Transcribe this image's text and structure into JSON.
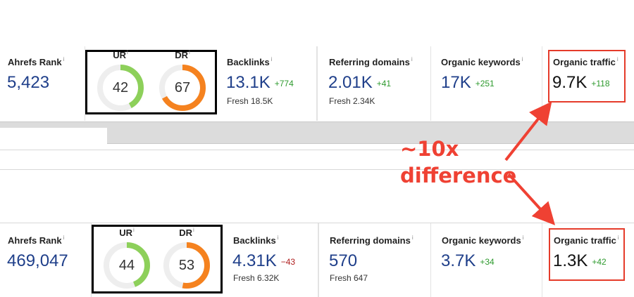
{
  "top": {
    "ahrefs_rank": {
      "label": "Ahrefs Rank",
      "info": "i",
      "value": "5,423"
    },
    "ur": {
      "label": "UR",
      "info": "i",
      "value": "42",
      "level": 0.42,
      "color": "#8dd05a"
    },
    "dr": {
      "label": "DR",
      "info": "i",
      "value": "67",
      "level": 0.67,
      "color": "#f5821f"
    },
    "backlinks": {
      "label": "Backlinks",
      "info": "i",
      "value": "13.1K",
      "delta": "+774",
      "fresh": "Fresh 18.5K"
    },
    "referring_domains": {
      "label": "Referring domains",
      "info": "i",
      "value": "2.01K",
      "delta": "+41",
      "fresh": "Fresh 2.34K"
    },
    "organic_keywords": {
      "label": "Organic keywords",
      "info": "i",
      "value": "17K",
      "delta": "+251"
    },
    "organic_traffic": {
      "label": "Organic traffic",
      "info": "i",
      "value": "9.7K",
      "delta": "+118"
    }
  },
  "bottom": {
    "ahrefs_rank": {
      "label": "Ahrefs Rank",
      "info": "i",
      "value": "469,047"
    },
    "ur": {
      "label": "UR",
      "info": "i",
      "value": "44",
      "level": 0.44,
      "color": "#8dd05a"
    },
    "dr": {
      "label": "DR",
      "info": "i",
      "value": "53",
      "level": 0.53,
      "color": "#f5821f"
    },
    "backlinks": {
      "label": "Backlinks",
      "info": "i",
      "value": "4.31K",
      "delta": "−43",
      "fresh": "Fresh 6.32K"
    },
    "referring_domains": {
      "label": "Referring domains",
      "info": "i",
      "value": "570",
      "fresh": "Fresh 647"
    },
    "organic_keywords": {
      "label": "Organic keywords",
      "info": "i",
      "value": "3.7K",
      "delta": "+34"
    },
    "organic_traffic": {
      "label": "Organic traffic",
      "info": "i",
      "value": "1.3K",
      "delta": "+42"
    }
  },
  "annotation": {
    "line1": "~10x",
    "line2": "difference",
    "color": "#ef4133"
  },
  "colors": {
    "value_blue": "#1f3f8a",
    "delta_positive": "#2e9a2e",
    "delta_negative": "#b02020",
    "highlight_red": "#e53b2a",
    "gauge_track": "#eeeeee"
  }
}
